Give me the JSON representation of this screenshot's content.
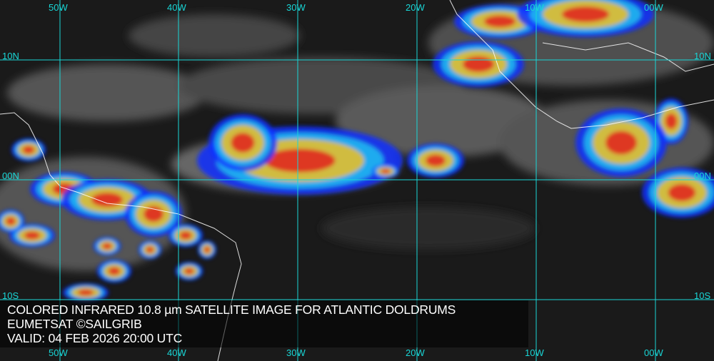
{
  "title": "COLORED INFRARED 10.8 µm SATELLITE IMAGE FOR ATLANTIC DOLDRUMS",
  "source": "EUMETSAT ©SAILGRIB",
  "valid": "VALID:  04 FEB 2026 20:00 UTC",
  "longitudes": [
    "50W",
    "40W",
    "30W",
    "20W",
    "10W",
    "00W"
  ],
  "latitudes": [
    "10N",
    "00N",
    "10S"
  ],
  "colors": {
    "grid": "#19d6d6",
    "background": "#1a1a1a",
    "cloud_cold": "#e02020",
    "cloud_mid": "#f0c020",
    "cloud_warm": "#1030ff",
    "text": "#ffffff"
  }
}
